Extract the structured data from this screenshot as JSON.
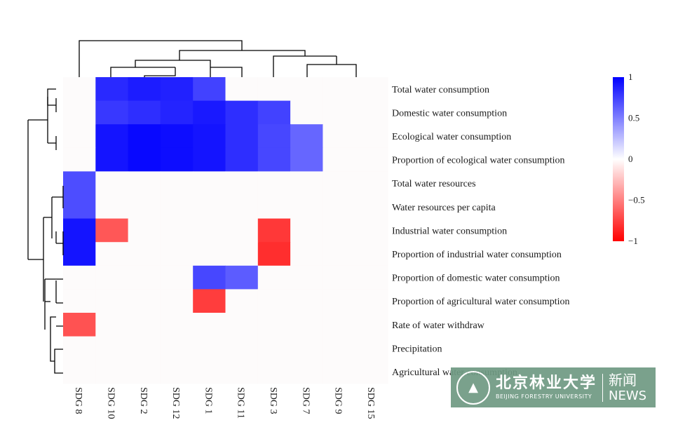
{
  "chart_data": {
    "type": "heatmap",
    "title": "",
    "rows": [
      "Total water consumption",
      "Domestic water consumption",
      "Ecological water consumption",
      "Proportion of ecological water consumption",
      "Total water resources",
      "Water resources per capita",
      "Industrial water consumption",
      "Proportion of industrial water consumption",
      "Proportion of domestic water consumption",
      "Proportion of agricultural water consumption",
      "Rate of water withdraw",
      "Precipitation",
      "Agricultural water consumption"
    ],
    "columns": [
      "SDG 8",
      "SDG 10",
      "SDG 2",
      "SDG 12",
      "SDG 1",
      "SDG 11",
      "SDG 3",
      "SDG 7",
      "SDG 9",
      "SDG 15"
    ],
    "values": [
      [
        0,
        0.84,
        0.89,
        0.87,
        0.74,
        0,
        0,
        0,
        0,
        0
      ],
      [
        0,
        0.78,
        0.82,
        0.86,
        0.9,
        0.82,
        0.74,
        0,
        0,
        0
      ],
      [
        0,
        0.92,
        0.97,
        0.95,
        0.92,
        0.82,
        0.72,
        0.6,
        0,
        0
      ],
      [
        0,
        0.92,
        0.97,
        0.95,
        0.92,
        0.82,
        0.72,
        0.6,
        0,
        0
      ],
      [
        0.7,
        0,
        0,
        0,
        0,
        0,
        0,
        0,
        0,
        0
      ],
      [
        0.7,
        0,
        0,
        0,
        0,
        0,
        0,
        0,
        0,
        0
      ],
      [
        0.92,
        -0.66,
        0,
        0,
        0,
        0,
        -0.78,
        0,
        0,
        0
      ],
      [
        0.92,
        0,
        0,
        0,
        0,
        0,
        -0.82,
        0,
        0,
        0
      ],
      [
        0,
        0,
        0,
        0,
        0.72,
        0.64,
        0,
        0,
        0,
        0
      ],
      [
        0,
        0,
        0,
        0,
        -0.76,
        0,
        0,
        0,
        0,
        0
      ],
      [
        -0.68,
        0,
        0,
        0,
        0,
        0,
        0,
        0,
        0,
        0
      ],
      [
        0,
        0,
        0,
        0,
        0,
        0,
        0,
        0,
        0,
        0
      ],
      [
        0,
        0,
        0,
        0,
        0,
        0,
        0,
        0,
        0,
        0
      ]
    ],
    "colorbar": {
      "range": [
        -1,
        1
      ],
      "ticks": [
        {
          "value": 1,
          "label": "1"
        },
        {
          "value": 0.5,
          "label": "0.5"
        },
        {
          "value": 0,
          "label": "0"
        },
        {
          "value": -0.5,
          "label": "−0.5"
        },
        {
          "value": -1,
          "label": "−1"
        }
      ]
    },
    "colors": {
      "positive": "#0000ff",
      "negative": "#ff0000",
      "zero": "#fdfbfb"
    },
    "dendrograms": [
      "rows",
      "columns"
    ]
  },
  "watermark": {
    "chinese_name": "北京林业大学",
    "english_name": "BEIJING FORESTRY UNIVERSITY",
    "section": "新闻",
    "section_en": "NEWS",
    "seal_icon": "university-seal-icon"
  }
}
